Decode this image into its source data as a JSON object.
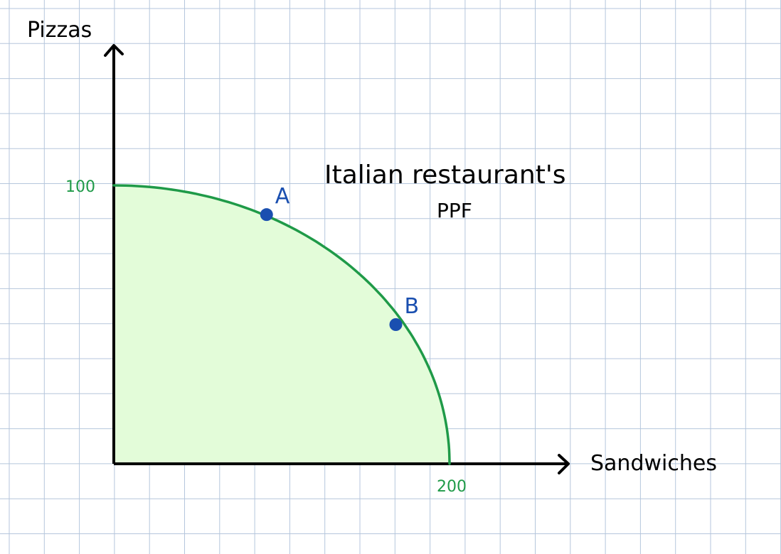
{
  "chart_data": {
    "type": "area",
    "title": "Italian restaurant's",
    "subtitle": "PPF",
    "xlabel": "Sandwiches",
    "ylabel": "Pizzas",
    "xlim": [
      0,
      200
    ],
    "ylim": [
      0,
      100
    ],
    "x_tick_labels": [
      {
        "value": 200,
        "label": "200"
      }
    ],
    "y_tick_labels": [
      {
        "value": 100,
        "label": "100"
      }
    ],
    "grid": true,
    "series": [
      {
        "x": [
          0,
          20,
          40,
          60,
          80,
          100,
          120,
          140,
          160,
          180,
          190,
          200
        ],
        "y": [
          100,
          99.5,
          98,
          95.5,
          91.7,
          86.6,
          80,
          71.4,
          60,
          43.6,
          31.2,
          0
        ]
      }
    ],
    "points": [
      {
        "label": "A",
        "x": 91,
        "y": 89.5
      },
      {
        "label": "B",
        "x": 168,
        "y": 50
      }
    ],
    "colors": {
      "curve": "#1f9a48",
      "fill": "#e3fcd9",
      "points": "#1a4fb0",
      "axis": "#000000",
      "grid": "#b5c6dc",
      "tick_labels": "#1f9a48"
    }
  }
}
